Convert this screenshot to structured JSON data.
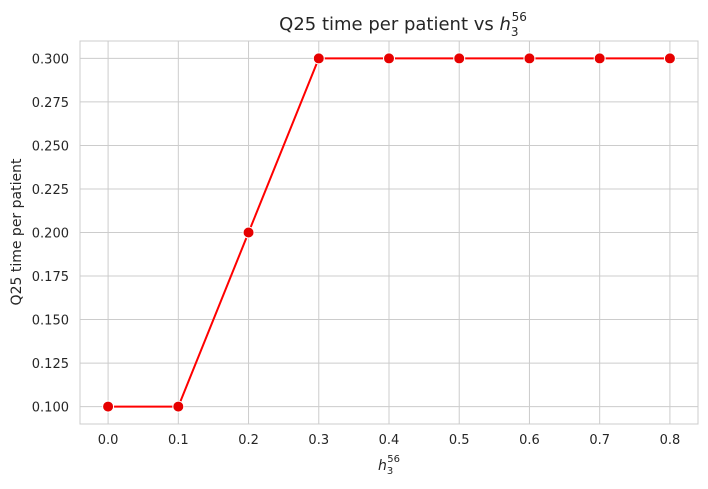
{
  "chart_data": {
    "type": "line",
    "title": {
      "text": "Q25 time per patient vs ",
      "symbol": "h",
      "sub": "3",
      "sup": "56"
    },
    "xlabel": {
      "symbol": "h",
      "sub": "3",
      "sup": "56"
    },
    "ylabel": "Q25 time per patient",
    "x": [
      0.0,
      0.1,
      0.2,
      0.3,
      0.4,
      0.5,
      0.6,
      0.7,
      0.8
    ],
    "y": [
      0.1,
      0.1,
      0.2,
      0.3,
      0.3,
      0.3,
      0.3,
      0.3,
      0.3
    ],
    "x_ticks": [
      "0.0",
      "0.1",
      "0.2",
      "0.3",
      "0.4",
      "0.5",
      "0.6",
      "0.7",
      "0.8"
    ],
    "y_ticks": [
      "0.100",
      "0.125",
      "0.150",
      "0.175",
      "0.200",
      "0.225",
      "0.250",
      "0.275",
      "0.300"
    ],
    "x_tick_values": [
      0.0,
      0.1,
      0.2,
      0.3,
      0.4,
      0.5,
      0.6,
      0.7,
      0.8
    ],
    "y_tick_values": [
      0.1,
      0.125,
      0.15,
      0.175,
      0.2,
      0.225,
      0.25,
      0.275,
      0.3
    ],
    "xlim": [
      -0.04,
      0.84
    ],
    "ylim": [
      0.09,
      0.31
    ],
    "grid": true,
    "legend": "none",
    "line_color": "#ff0000",
    "marker_color": "#e60000",
    "grid_color": "#cccccc"
  }
}
